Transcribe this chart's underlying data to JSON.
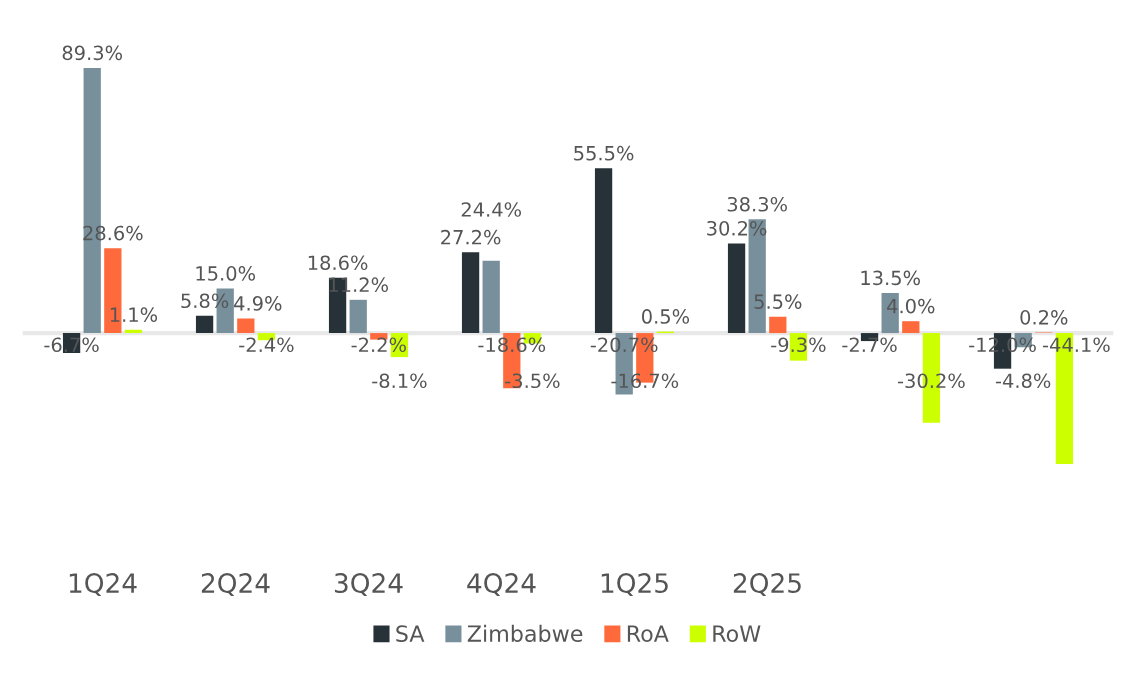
{
  "chart_data": {
    "type": "bar",
    "categories": [
      "1Q24",
      "2Q24",
      "3Q24",
      "4Q24",
      "1Q25",
      "2Q25",
      null,
      null
    ],
    "series": [
      {
        "name": "SA",
        "color": "#263238",
        "values": [
          -6.7,
          5.8,
          18.6,
          27.2,
          55.5,
          30.2,
          -2.7,
          -12.0
        ],
        "value_labels": [
          "-6.7%",
          "5.8%",
          "18.6%",
          "27.2%",
          "55.5%",
          "30.2%",
          "-2.7%",
          "-12.0%"
        ]
      },
      {
        "name": "Zimbabwe",
        "color": "#78909c",
        "values": [
          89.3,
          15.0,
          11.2,
          24.4,
          -20.7,
          38.3,
          13.5,
          -4.8
        ],
        "value_labels": [
          "89.3%",
          "15.0%",
          "11.2%",
          "24.4%",
          "-20.7%",
          "38.3%",
          "13.5%",
          "-4.8%"
        ]
      },
      {
        "name": "RoA",
        "color": "#ff6a3d",
        "values": [
          28.6,
          4.9,
          -2.2,
          -18.6,
          -16.7,
          5.5,
          4.0,
          0.2
        ],
        "value_labels": [
          "28.6%",
          "4.9%",
          "-2.2%",
          "-18.6%",
          "-16.7%",
          "5.5%",
          "4.0%",
          "0.2%"
        ]
      },
      {
        "name": "RoW",
        "color": "#ccff00",
        "values": [
          1.1,
          -2.4,
          -8.1,
          -3.5,
          0.5,
          -9.3,
          -30.2,
          -44.1
        ],
        "value_labels": [
          "1.1%",
          "-2.4%",
          "-8.1%",
          "-3.5%",
          "0.5%",
          "-9.3%",
          "-30.2%",
          "-44.1%"
        ]
      }
    ],
    "legend": "bottom",
    "grid": false
  }
}
